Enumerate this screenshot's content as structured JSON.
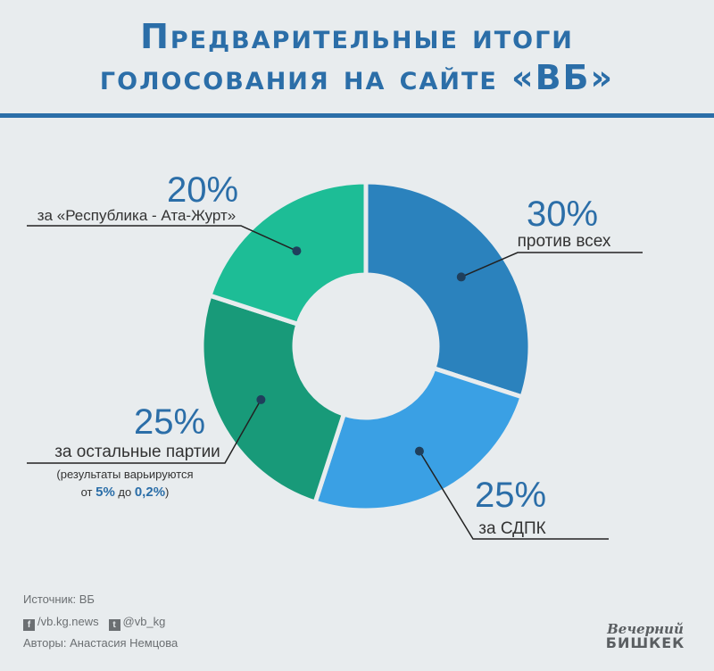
{
  "title": {
    "line1": "Предварительные итоги",
    "line2": "голосования на сайте «ВБ»"
  },
  "chart_data": {
    "type": "pie",
    "categories": [
      "против всех",
      "за СДПК",
      "за остальные партии",
      "за «Республика - Ата-Журт»"
    ],
    "values": [
      30,
      25,
      25,
      20
    ],
    "value_labels": [
      "30%",
      "25%",
      "25%",
      "20%"
    ],
    "colors": [
      "#2b82bd",
      "#3aa0e4",
      "#189a79",
      "#1dbd96"
    ],
    "annotation": {
      "note_line1": "(результаты варьируются",
      "note_line2_prefix": "от ",
      "note_bold1": "5%",
      "note_mid": " до ",
      "note_bold2": "0,2%",
      "note_suffix": ")"
    }
  },
  "footer": {
    "source": "Источник: ВБ",
    "facebook_icon": "f",
    "facebook": "/vb.kg.news",
    "twitter_icon": "t",
    "twitter": "@vb_kg",
    "authors": "Авторы: Анастасия Немцова"
  },
  "logo": {
    "line1": "Вечерний",
    "line2": "БИШКЕК"
  }
}
